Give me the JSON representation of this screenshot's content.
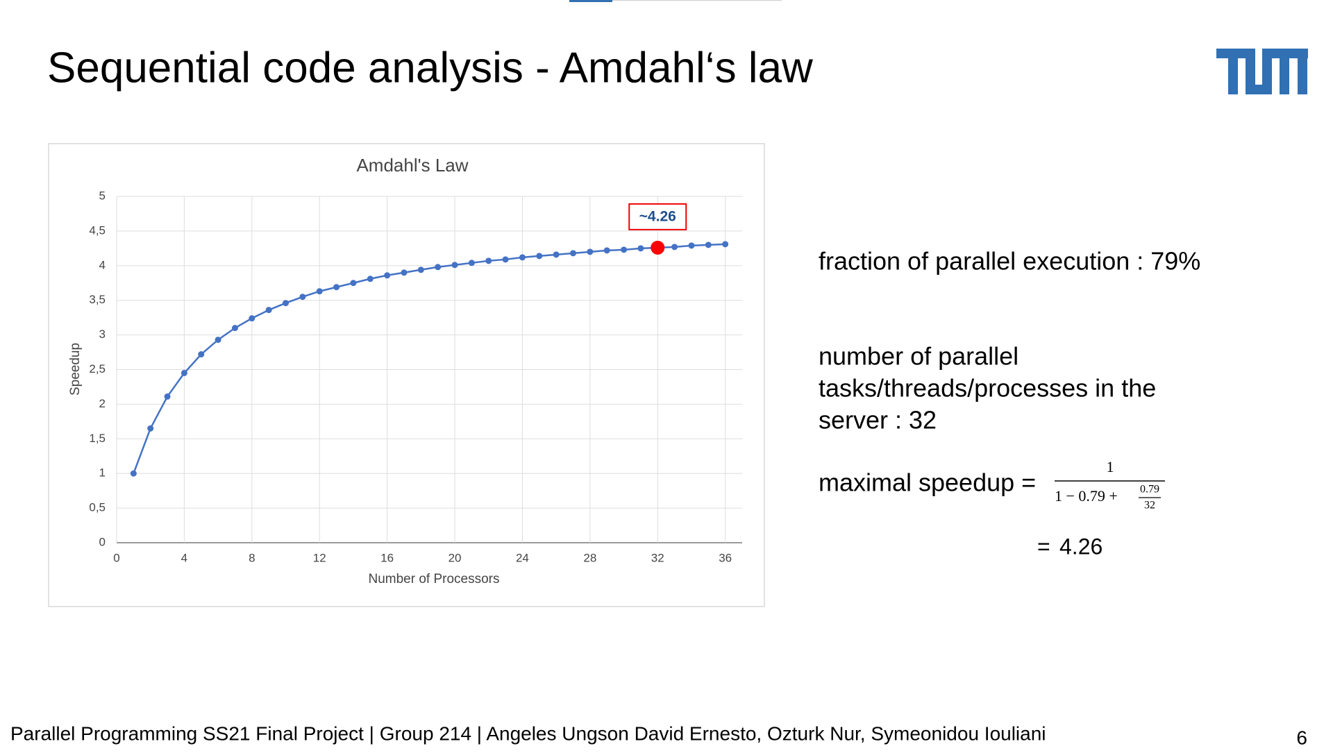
{
  "slide": {
    "title": "Sequential code analysis - Amdahl‘s law",
    "facts": [
      "fraction of parallel execution : 79%"
    ],
    "threads_lines": [
      "number of parallel",
      "tasks/threads/processes in the",
      "server : 32"
    ],
    "formula": {
      "label": "maximal speedup =",
      "numerator": "1",
      "denominator": "1 − 0.79 +",
      "inner_numerator": "0.79",
      "inner_denominator": "32",
      "equals": "=",
      "result": "4.26"
    },
    "footer": "Parallel Programming SS21 Final Project | Group 214 | Angeles Ungson David Ernesto, Ozturk Nur, Symeonidou Iouliani",
    "page_number": "6"
  },
  "chart_data": {
    "type": "line",
    "title": "Amdahl's Law",
    "x_label": "Number of Processors",
    "y_label": "Speedup",
    "x": [
      1,
      2,
      3,
      4,
      5,
      6,
      7,
      8,
      9,
      10,
      11,
      12,
      13,
      14,
      15,
      16,
      17,
      18,
      19,
      20,
      21,
      22,
      23,
      24,
      25,
      26,
      27,
      28,
      29,
      30,
      31,
      32,
      33,
      34,
      35,
      36
    ],
    "series": [
      {
        "color": "#4472c4",
        "values": [
          1,
          1.65,
          2.11,
          2.45,
          2.72,
          2.93,
          3.1,
          3.24,
          3.36,
          3.46,
          3.55,
          3.63,
          3.69,
          3.75,
          3.81,
          3.86,
          3.9,
          3.94,
          3.98,
          4.01,
          4.04,
          4.07,
          4.09,
          4.12,
          4.14,
          4.16,
          4.18,
          4.2,
          4.22,
          4.23,
          4.25,
          4.26,
          4.27,
          4.29,
          4.3,
          4.31
        ]
      }
    ],
    "highlight": {
      "index": 31,
      "color": "#ff0000",
      "label": "~4.26"
    },
    "xlim": [
      0,
      37
    ],
    "xticks": [
      0,
      4,
      8,
      12,
      16,
      20,
      24,
      28,
      32,
      36
    ],
    "ylim": [
      0,
      5
    ],
    "yticks": [
      0,
      {
        "value": 0.5,
        "label": "0,5"
      },
      1,
      {
        "value": 1.5,
        "label": "1,5"
      },
      2,
      {
        "value": 2.5,
        "label": "2,5"
      },
      3,
      {
        "value": 3.5,
        "label": "3,5"
      },
      4,
      {
        "value": 4.5,
        "label": "4,5"
      },
      5
    ],
    "grid": true
  }
}
